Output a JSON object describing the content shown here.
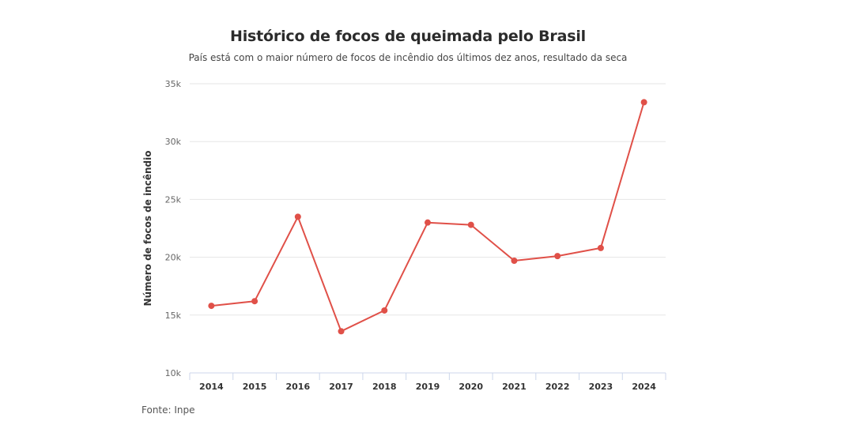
{
  "chart_data": {
    "type": "line",
    "title": "Histórico de focos de queimada pelo Brasil",
    "subtitle": "País está com o maior número de focos de incêndio dos últimos dez anos, resultado da seca",
    "xlabel": "",
    "ylabel": "Número de focos de incêndio",
    "categories": [
      "2014",
      "2015",
      "2016",
      "2017",
      "2018",
      "2019",
      "2020",
      "2021",
      "2022",
      "2023",
      "2024"
    ],
    "values": [
      15800,
      16200,
      23500,
      13600,
      15400,
      23000,
      22800,
      19700,
      20100,
      20800,
      33400
    ],
    "ylim": [
      10000,
      35000
    ],
    "yticks": [
      10000,
      15000,
      20000,
      25000,
      30000,
      35000
    ],
    "ytick_labels": [
      "10k",
      "15k",
      "20k",
      "25k",
      "30k",
      "35k"
    ],
    "grid": true,
    "legend": "none",
    "colors": {
      "line": "#e05048",
      "grid": "#e6e6e6",
      "axis": "#ccd6eb",
      "text": "#666666"
    }
  },
  "source": "Fonte: Inpe"
}
